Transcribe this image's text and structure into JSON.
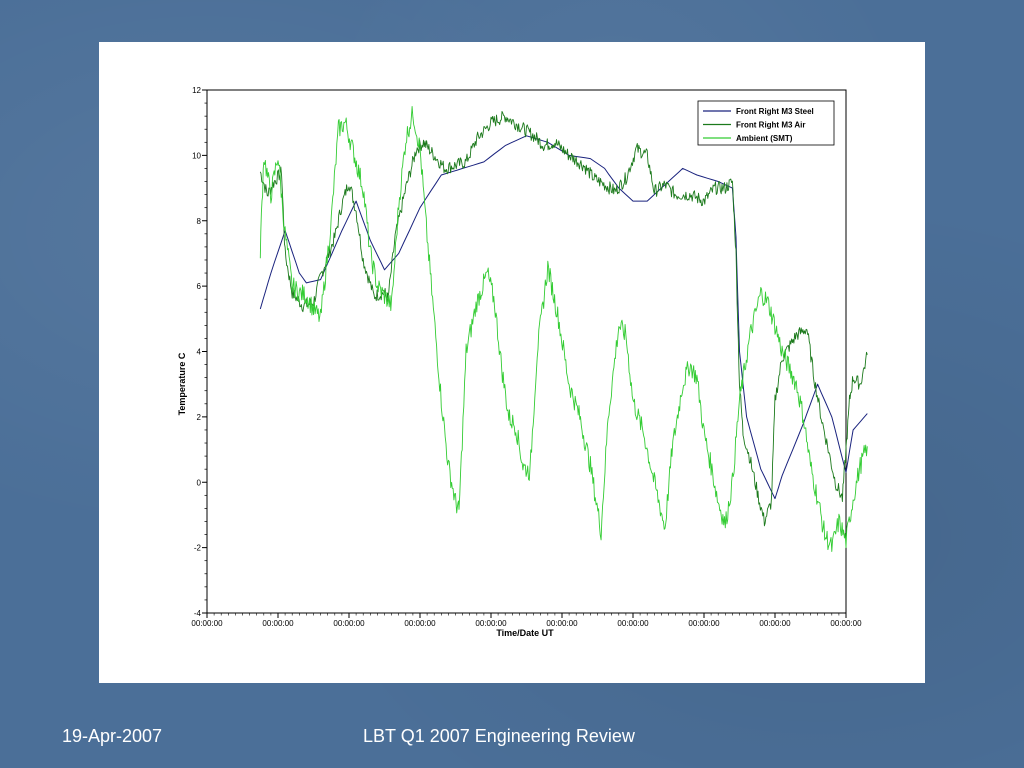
{
  "slide": {
    "footer_date": "19-Apr-2007",
    "footer_title": "LBT Q1 2007 Engineering Review",
    "background_color": "#4b6f98"
  },
  "chart_data": {
    "type": "line",
    "xlabel": "Time/Date UT",
    "ylabel": "Temperature C",
    "ylim": [
      -4,
      12
    ],
    "yticks": [
      -4,
      -2,
      0,
      2,
      4,
      6,
      8,
      10,
      12
    ],
    "xlim": [
      0,
      9
    ],
    "xticks": [
      0,
      1,
      2,
      3,
      4,
      5,
      6,
      7,
      8,
      9
    ],
    "xtick_labels": [
      "00:00:00",
      "00:00:00",
      "00:00:00",
      "00:00:00",
      "00:00:00",
      "00:00:00",
      "00:00:00",
      "00:00:00",
      "00:00:00",
      "00:00:00"
    ],
    "legend_position": "top-right",
    "grid": false,
    "series": [
      {
        "name": "Front Right M3 Steel",
        "color": "#1a237e",
        "noise": 0.0,
        "points": [
          [
            0.75,
            5.3
          ],
          [
            0.9,
            6.4
          ],
          [
            1.1,
            7.7
          ],
          [
            1.3,
            6.4
          ],
          [
            1.4,
            6.1
          ],
          [
            1.6,
            6.2
          ],
          [
            1.9,
            7.7
          ],
          [
            2.1,
            8.6
          ],
          [
            2.3,
            7.4
          ],
          [
            2.5,
            6.5
          ],
          [
            2.7,
            7.0
          ],
          [
            3.0,
            8.4
          ],
          [
            3.3,
            9.4
          ],
          [
            3.6,
            9.6
          ],
          [
            3.9,
            9.8
          ],
          [
            4.2,
            10.3
          ],
          [
            4.5,
            10.6
          ],
          [
            4.8,
            10.4
          ],
          [
            5.1,
            10.0
          ],
          [
            5.4,
            9.9
          ],
          [
            5.6,
            9.6
          ],
          [
            5.8,
            9.0
          ],
          [
            6.0,
            8.6
          ],
          [
            6.2,
            8.6
          ],
          [
            6.5,
            9.2
          ],
          [
            6.7,
            9.6
          ],
          [
            6.9,
            9.4
          ],
          [
            7.2,
            9.2
          ],
          [
            7.4,
            9.0
          ],
          [
            7.45,
            7.5
          ],
          [
            7.5,
            4.0
          ],
          [
            7.6,
            2.0
          ],
          [
            7.8,
            0.4
          ],
          [
            8.0,
            -0.5
          ],
          [
            8.1,
            0.2
          ],
          [
            8.4,
            1.8
          ],
          [
            8.6,
            3.0
          ],
          [
            8.8,
            2.0
          ],
          [
            9.0,
            0.3
          ],
          [
            9.1,
            1.6
          ],
          [
            9.3,
            2.1
          ]
        ]
      },
      {
        "name": "Front Right M3 Air",
        "color": "#1c7a1c",
        "noise": 0.2,
        "points": [
          [
            0.75,
            9.5
          ],
          [
            0.85,
            8.8
          ],
          [
            0.95,
            9.2
          ],
          [
            1.05,
            9.5
          ],
          [
            1.1,
            7.0
          ],
          [
            1.2,
            5.8
          ],
          [
            1.35,
            5.4
          ],
          [
            1.5,
            5.5
          ],
          [
            1.6,
            6.3
          ],
          [
            1.8,
            7.5
          ],
          [
            1.9,
            8.5
          ],
          [
            2.0,
            9.2
          ],
          [
            2.1,
            8.3
          ],
          [
            2.2,
            6.8
          ],
          [
            2.35,
            5.7
          ],
          [
            2.5,
            5.8
          ],
          [
            2.55,
            5.6
          ],
          [
            2.65,
            7.5
          ],
          [
            2.8,
            9.0
          ],
          [
            2.95,
            10.2
          ],
          [
            3.05,
            10.4
          ],
          [
            3.2,
            10.0
          ],
          [
            3.35,
            9.6
          ],
          [
            3.5,
            9.7
          ],
          [
            3.65,
            9.8
          ],
          [
            3.8,
            10.5
          ],
          [
            4.0,
            11.0
          ],
          [
            4.2,
            11.2
          ],
          [
            4.4,
            10.9
          ],
          [
            4.6,
            10.6
          ],
          [
            4.75,
            10.3
          ],
          [
            4.9,
            10.4
          ],
          [
            5.1,
            10.0
          ],
          [
            5.3,
            9.7
          ],
          [
            5.45,
            9.3
          ],
          [
            5.6,
            9.1
          ],
          [
            5.75,
            8.9
          ],
          [
            5.9,
            9.3
          ],
          [
            6.05,
            10.2
          ],
          [
            6.2,
            10.0
          ],
          [
            6.3,
            8.9
          ],
          [
            6.45,
            9.1
          ],
          [
            6.6,
            8.8
          ],
          [
            6.8,
            8.8
          ],
          [
            7.0,
            8.6
          ],
          [
            7.15,
            9.0
          ],
          [
            7.3,
            9.0
          ],
          [
            7.4,
            9.2
          ],
          [
            7.45,
            7.0
          ],
          [
            7.5,
            3.0
          ],
          [
            7.55,
            1.5
          ],
          [
            7.65,
            0.7
          ],
          [
            7.75,
            -0.3
          ],
          [
            7.85,
            -1.2
          ],
          [
            7.95,
            -0.6
          ],
          [
            8.0,
            2.5
          ],
          [
            8.1,
            3.8
          ],
          [
            8.3,
            4.5
          ],
          [
            8.45,
            4.7
          ],
          [
            8.55,
            3.2
          ],
          [
            8.65,
            2.0
          ],
          [
            8.75,
            1.0
          ],
          [
            8.85,
            0.0
          ],
          [
            8.95,
            -0.5
          ],
          [
            9.0,
            1.0
          ],
          [
            9.05,
            2.5
          ],
          [
            9.1,
            3.2
          ],
          [
            9.2,
            3.0
          ],
          [
            9.3,
            3.9
          ]
        ]
      },
      {
        "name": "Ambient (SMT)",
        "color": "#33cc33",
        "noise": 0.3,
        "points": [
          [
            0.75,
            7.1
          ],
          [
            0.8,
            10.0
          ],
          [
            0.9,
            8.8
          ],
          [
            1.0,
            10.0
          ],
          [
            1.1,
            7.6
          ],
          [
            1.2,
            6.0
          ],
          [
            1.3,
            5.8
          ],
          [
            1.4,
            5.7
          ],
          [
            1.5,
            5.3
          ],
          [
            1.6,
            5.0
          ],
          [
            1.75,
            8.0
          ],
          [
            1.85,
            10.8
          ],
          [
            1.95,
            11.0
          ],
          [
            2.05,
            10.2
          ],
          [
            2.2,
            9.0
          ],
          [
            2.3,
            7.0
          ],
          [
            2.4,
            6.0
          ],
          [
            2.5,
            5.7
          ],
          [
            2.6,
            5.4
          ],
          [
            2.7,
            8.5
          ],
          [
            2.8,
            10.5
          ],
          [
            2.9,
            11.3
          ],
          [
            3.0,
            10.2
          ],
          [
            3.1,
            7.5
          ],
          [
            3.2,
            5.0
          ],
          [
            3.3,
            2.5
          ],
          [
            3.4,
            0.5
          ],
          [
            3.5,
            -0.6
          ],
          [
            3.55,
            -0.9
          ],
          [
            3.65,
            4.0
          ],
          [
            3.8,
            5.5
          ],
          [
            3.95,
            6.4
          ],
          [
            4.05,
            5.5
          ],
          [
            4.15,
            3.5
          ],
          [
            4.25,
            2.0
          ],
          [
            4.35,
            1.7
          ],
          [
            4.45,
            0.5
          ],
          [
            4.55,
            0.3
          ],
          [
            4.65,
            4.0
          ],
          [
            4.8,
            6.6
          ],
          [
            4.95,
            5.0
          ],
          [
            5.1,
            3.0
          ],
          [
            5.25,
            2.0
          ],
          [
            5.4,
            0.5
          ],
          [
            5.55,
            -1.5
          ],
          [
            5.65,
            2.0
          ],
          [
            5.8,
            4.8
          ],
          [
            5.9,
            4.5
          ],
          [
            6.0,
            2.5
          ],
          [
            6.15,
            1.5
          ],
          [
            6.3,
            0.0
          ],
          [
            6.45,
            -1.4
          ],
          [
            6.55,
            1.0
          ],
          [
            6.7,
            3.0
          ],
          [
            6.8,
            3.6
          ],
          [
            6.9,
            3.2
          ],
          [
            7.0,
            1.5
          ],
          [
            7.1,
            0.5
          ],
          [
            7.2,
            -0.6
          ],
          [
            7.3,
            -1.3
          ],
          [
            7.4,
            0.0
          ],
          [
            7.5,
            2.5
          ],
          [
            7.65,
            4.5
          ],
          [
            7.8,
            5.8
          ],
          [
            7.9,
            5.5
          ],
          [
            8.0,
            4.8
          ],
          [
            8.1,
            4.0
          ],
          [
            8.2,
            3.5
          ],
          [
            8.3,
            3.0
          ],
          [
            8.4,
            2.0
          ],
          [
            8.5,
            0.5
          ],
          [
            8.6,
            -0.5
          ],
          [
            8.7,
            -1.6
          ],
          [
            8.8,
            -2.0
          ],
          [
            8.9,
            -1.2
          ],
          [
            9.0,
            -1.8
          ],
          [
            9.1,
            -0.5
          ],
          [
            9.2,
            0.5
          ],
          [
            9.3,
            1.1
          ]
        ]
      }
    ]
  }
}
